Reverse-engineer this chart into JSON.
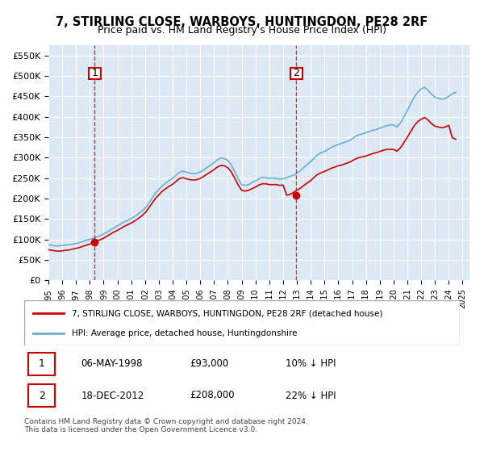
{
  "title": "7, STIRLING CLOSE, WARBOYS, HUNTINGDON, PE28 2RF",
  "subtitle": "Price paid vs. HM Land Registry's House Price Index (HPI)",
  "xlabel": "",
  "ylabel": "",
  "ylim": [
    0,
    575000
  ],
  "yticks": [
    0,
    50000,
    100000,
    150000,
    200000,
    250000,
    300000,
    350000,
    400000,
    450000,
    500000,
    550000
  ],
  "ytick_labels": [
    "£0",
    "£50K",
    "£100K",
    "£150K",
    "£200K",
    "£250K",
    "£300K",
    "£350K",
    "£400K",
    "£450K",
    "£500K",
    "£550K"
  ],
  "xlim_start": 1995.0,
  "xlim_end": 2025.5,
  "background_color": "#dce9f5",
  "plot_bg_color": "#dce9f5",
  "grid_color": "#ffffff",
  "transaction1": {
    "date": "06-MAY-1998",
    "price": 93000,
    "year": 1998.35,
    "label": "1"
  },
  "transaction2": {
    "date": "18-DEC-2012",
    "price": 208000,
    "year": 2012.96,
    "label": "2"
  },
  "legend_line1": "7, STIRLING CLOSE, WARBOYS, HUNTINGDON, PE28 2RF (detached house)",
  "legend_line2": "HPI: Average price, detached house, Huntingdonshire",
  "table_row1": [
    "1",
    "06-MAY-1998",
    "£93,000",
    "10% ↓ HPI"
  ],
  "table_row2": [
    "2",
    "18-DEC-2012",
    "£208,000",
    "22% ↓ HPI"
  ],
  "footer": "Contains HM Land Registry data © Crown copyright and database right 2024.\nThis data is licensed under the Open Government Licence v3.0.",
  "hpi_color": "#6baed6",
  "price_color": "#cc0000",
  "marker_box_color": "#cc0000",
  "hpi_data": {
    "years": [
      1995.0,
      1995.25,
      1995.5,
      1995.75,
      1996.0,
      1996.25,
      1996.5,
      1996.75,
      1997.0,
      1997.25,
      1997.5,
      1997.75,
      1998.0,
      1998.25,
      1998.5,
      1998.75,
      1999.0,
      1999.25,
      1999.5,
      1999.75,
      2000.0,
      2000.25,
      2000.5,
      2000.75,
      2001.0,
      2001.25,
      2001.5,
      2001.75,
      2002.0,
      2002.25,
      2002.5,
      2002.75,
      2003.0,
      2003.25,
      2003.5,
      2003.75,
      2004.0,
      2004.25,
      2004.5,
      2004.75,
      2005.0,
      2005.25,
      2005.5,
      2005.75,
      2006.0,
      2006.25,
      2006.5,
      2006.75,
      2007.0,
      2007.25,
      2007.5,
      2007.75,
      2008.0,
      2008.25,
      2008.5,
      2008.75,
      2009.0,
      2009.25,
      2009.5,
      2009.75,
      2010.0,
      2010.25,
      2010.5,
      2010.75,
      2011.0,
      2011.25,
      2011.5,
      2011.75,
      2012.0,
      2012.25,
      2012.5,
      2012.75,
      2013.0,
      2013.25,
      2013.5,
      2013.75,
      2014.0,
      2014.25,
      2014.5,
      2014.75,
      2015.0,
      2015.25,
      2015.5,
      2015.75,
      2016.0,
      2016.25,
      2016.5,
      2016.75,
      2017.0,
      2017.25,
      2017.5,
      2017.75,
      2018.0,
      2018.25,
      2018.5,
      2018.75,
      2019.0,
      2019.25,
      2019.5,
      2019.75,
      2020.0,
      2020.25,
      2020.5,
      2020.75,
      2021.0,
      2021.25,
      2021.5,
      2021.75,
      2022.0,
      2022.25,
      2022.5,
      2022.75,
      2023.0,
      2023.25,
      2023.5,
      2023.75,
      2024.0,
      2024.25,
      2024.5
    ],
    "values": [
      87000,
      85000,
      84000,
      84000,
      85000,
      86000,
      87000,
      88000,
      90000,
      92000,
      95000,
      98000,
      100000,
      103000,
      106000,
      109000,
      113000,
      118000,
      123000,
      128000,
      133000,
      138000,
      143000,
      147000,
      151000,
      156000,
      162000,
      168000,
      176000,
      187000,
      200000,
      213000,
      222000,
      231000,
      238000,
      244000,
      249000,
      257000,
      264000,
      267000,
      264000,
      262000,
      261000,
      262000,
      265000,
      270000,
      276000,
      282000,
      288000,
      295000,
      299000,
      298000,
      293000,
      282000,
      265000,
      248000,
      234000,
      232000,
      234000,
      239000,
      243000,
      248000,
      252000,
      251000,
      249000,
      250000,
      249000,
      247000,
      248000,
      251000,
      254000,
      257000,
      262000,
      268000,
      276000,
      283000,
      290000,
      299000,
      307000,
      312000,
      315000,
      320000,
      325000,
      329000,
      332000,
      335000,
      338000,
      341000,
      346000,
      352000,
      356000,
      358000,
      361000,
      364000,
      367000,
      369000,
      372000,
      375000,
      378000,
      380000,
      380000,
      375000,
      385000,
      400000,
      415000,
      432000,
      448000,
      460000,
      468000,
      472000,
      465000,
      455000,
      448000,
      445000,
      443000,
      445000,
      450000,
      456000,
      460000
    ]
  },
  "price_data": {
    "years": [
      1995.0,
      1995.25,
      1995.5,
      1995.75,
      1996.0,
      1996.25,
      1996.5,
      1996.75,
      1997.0,
      1997.25,
      1997.5,
      1997.75,
      1998.0,
      1998.25,
      1998.5,
      1998.75,
      1999.0,
      1999.25,
      1999.5,
      1999.75,
      2000.0,
      2000.25,
      2000.5,
      2000.75,
      2001.0,
      2001.25,
      2001.5,
      2001.75,
      2002.0,
      2002.25,
      2002.5,
      2002.75,
      2003.0,
      2003.25,
      2003.5,
      2003.75,
      2004.0,
      2004.25,
      2004.5,
      2004.75,
      2005.0,
      2005.25,
      2005.5,
      2005.75,
      2006.0,
      2006.25,
      2006.5,
      2006.75,
      2007.0,
      2007.25,
      2007.5,
      2007.75,
      2008.0,
      2008.25,
      2008.5,
      2008.75,
      2009.0,
      2009.25,
      2009.5,
      2009.75,
      2010.0,
      2010.25,
      2010.5,
      2010.75,
      2011.0,
      2011.25,
      2011.5,
      2011.75,
      2012.0,
      2012.25,
      2012.5,
      2012.75,
      2013.0,
      2013.25,
      2013.5,
      2013.75,
      2014.0,
      2014.25,
      2014.5,
      2014.75,
      2015.0,
      2015.25,
      2015.5,
      2015.75,
      2016.0,
      2016.25,
      2016.5,
      2016.75,
      2017.0,
      2017.25,
      2017.5,
      2017.75,
      2018.0,
      2018.25,
      2018.5,
      2018.75,
      2019.0,
      2019.25,
      2019.5,
      2019.75,
      2020.0,
      2020.25,
      2020.5,
      2020.75,
      2021.0,
      2021.25,
      2021.5,
      2021.75,
      2022.0,
      2022.25,
      2022.5,
      2022.75,
      2023.0,
      2023.25,
      2023.5,
      2023.75,
      2024.0,
      2024.25,
      2024.5
    ],
    "values": [
      75000,
      73000,
      72000,
      71000,
      72000,
      73000,
      74000,
      76000,
      78000,
      80000,
      83000,
      86000,
      88000,
      93000,
      96000,
      99000,
      103000,
      108000,
      113000,
      118000,
      122000,
      127000,
      132000,
      136000,
      140000,
      145000,
      151000,
      157000,
      165000,
      176000,
      188000,
      200000,
      209000,
      218000,
      224000,
      230000,
      235000,
      242000,
      249000,
      251000,
      248000,
      246000,
      245000,
      246000,
      249000,
      254000,
      260000,
      265000,
      271000,
      277000,
      281000,
      280000,
      275000,
      265000,
      249000,
      233000,
      220000,
      218000,
      220000,
      224000,
      228000,
      233000,
      236000,
      236000,
      234000,
      234000,
      234000,
      232000,
      233000,
      208000,
      210000,
      215000,
      220000,
      225000,
      232000,
      238000,
      244000,
      252000,
      259000,
      263000,
      266000,
      270000,
      274000,
      277000,
      280000,
      282000,
      285000,
      288000,
      292000,
      297000,
      300000,
      302000,
      304000,
      307000,
      310000,
      312000,
      315000,
      318000,
      320000,
      320000,
      320000,
      316000,
      324000,
      337000,
      350000,
      364000,
      378000,
      388000,
      394000,
      398000,
      392000,
      383000,
      377000,
      375000,
      373000,
      375000,
      379000,
      349000,
      345000
    ]
  }
}
